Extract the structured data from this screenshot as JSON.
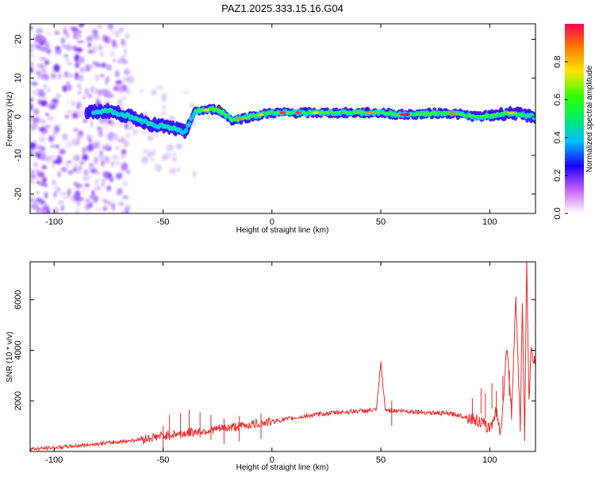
{
  "title": "PAZ1.2025.333.15.16.G04",
  "chart_data": [
    {
      "type": "heatmap",
      "xlabel": "Height of straight line (km)",
      "ylabel": "Frequency (Hz)",
      "xlim": [
        -111,
        121
      ],
      "ylim": [
        -25,
        24
      ],
      "xticks": [
        -100,
        -50,
        0,
        50,
        100
      ],
      "yticks": [
        20,
        10,
        0,
        -10,
        -20
      ],
      "colorbar": {
        "label": "Normalized spectral amplitude",
        "ticks": [
          "0.0",
          "0.2",
          "0.4",
          "0.6",
          "0.8"
        ],
        "range": [
          0,
          1
        ]
      },
      "ridge": [
        {
          "x": -85,
          "f": 1
        },
        {
          "x": -75,
          "f": 1.5
        },
        {
          "x": -65,
          "f": 0
        },
        {
          "x": -55,
          "f": -2
        },
        {
          "x": -45,
          "f": -3
        },
        {
          "x": -40,
          "f": -4
        },
        {
          "x": -35,
          "f": 1.5
        },
        {
          "x": -25,
          "f": 2
        },
        {
          "x": -18,
          "f": -1
        },
        {
          "x": -10,
          "f": 0
        },
        {
          "x": 0,
          "f": 1
        },
        {
          "x": 25,
          "f": 1
        },
        {
          "x": 50,
          "f": 1
        },
        {
          "x": 60,
          "f": 0.5
        },
        {
          "x": 80,
          "f": 1
        },
        {
          "x": 95,
          "f": 0
        },
        {
          "x": 110,
          "f": 1
        },
        {
          "x": 120,
          "f": 0
        }
      ]
    },
    {
      "type": "line",
      "xlabel": "Height of straight line (km)",
      "ylabel": "SNR (10 * v/v)",
      "xlim": [
        -111,
        121
      ],
      "ylim": [
        0,
        7500
      ],
      "xticks": [
        -100,
        -50,
        0,
        50,
        100
      ],
      "yticks": [
        2000,
        4000,
        6000
      ],
      "color": "#ee2a2a",
      "x": [
        -111,
        -105,
        -100,
        -95,
        -90,
        -85,
        -80,
        -75,
        -70,
        -65,
        -60,
        -55,
        -50,
        -45,
        -40,
        -35,
        -30,
        -25,
        -20,
        -15,
        -10,
        -5,
        0,
        5,
        10,
        15,
        20,
        25,
        30,
        35,
        40,
        45,
        48,
        50,
        52,
        55,
        60,
        65,
        70,
        75,
        80,
        85,
        90,
        95,
        100,
        103,
        105,
        108,
        110,
        112,
        114,
        115,
        116,
        117,
        118,
        119,
        120,
        121
      ],
      "y": [
        100,
        120,
        150,
        180,
        220,
        260,
        300,
        340,
        380,
        430,
        480,
        550,
        620,
        680,
        720,
        780,
        820,
        880,
        940,
        1000,
        1060,
        1120,
        1180,
        1250,
        1320,
        1390,
        1450,
        1500,
        1540,
        1570,
        1600,
        1620,
        1650,
        3500,
        1650,
        1620,
        1600,
        1580,
        1550,
        1520,
        1500,
        1450,
        1350,
        1200,
        900,
        1600,
        700,
        4200,
        1500,
        6000,
        900,
        6100,
        400,
        7500,
        2000,
        4000,
        3600,
        3500
      ],
      "spikes": [
        {
          "x": -50,
          "y": 1000
        },
        {
          "x": -47,
          "y": 1450
        },
        {
          "x": -42,
          "y": 1520
        },
        {
          "x": -38,
          "y": 1650
        },
        {
          "x": -33,
          "y": 1550
        },
        {
          "x": -28,
          "y": 1450
        },
        {
          "x": -22,
          "y": 1300
        },
        {
          "x": -15,
          "y": 1400
        },
        {
          "x": -5,
          "y": 1500
        },
        {
          "x": 55,
          "y": 2000
        },
        {
          "x": 92,
          "y": 2100
        },
        {
          "x": 96,
          "y": 2500
        },
        {
          "x": 98,
          "y": 2300
        },
        {
          "x": 101,
          "y": 2700
        },
        {
          "x": 103,
          "y": 2400
        },
        {
          "x": 106,
          "y": 3000
        },
        {
          "x": 109,
          "y": 3200
        }
      ]
    }
  ]
}
